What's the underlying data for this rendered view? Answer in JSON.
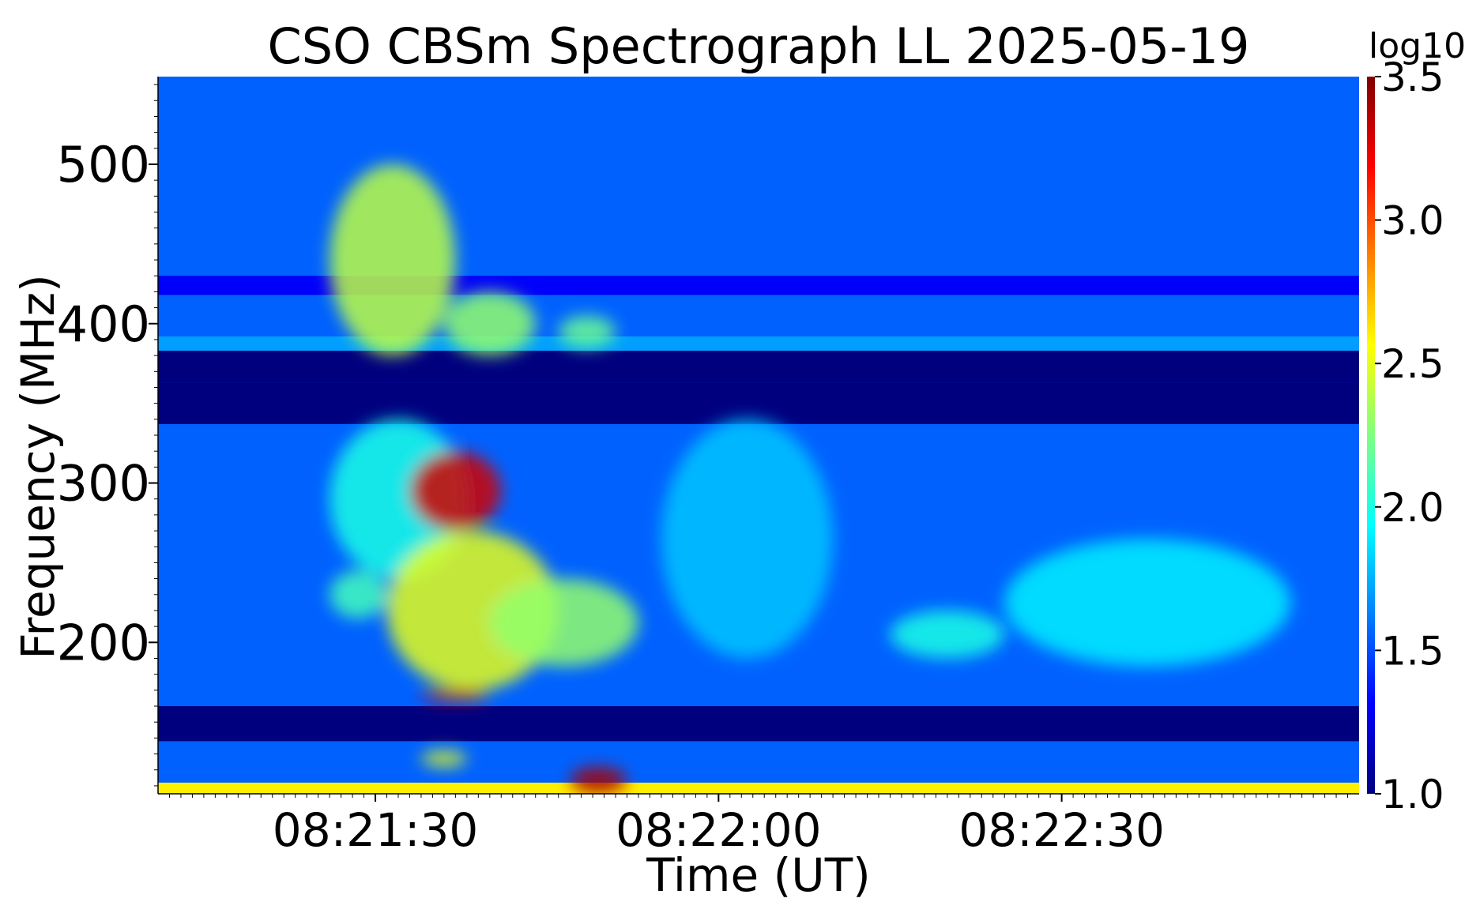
{
  "chart_data": {
    "type": "heatmap",
    "title": "CSO CBSm Spectrograph LL 2025-05-19",
    "xlabel": "Time (UT)",
    "ylabel": "Frequency (MHz)",
    "colorbar_label": "log10",
    "colormap": "jet",
    "colormap_colors": [
      "#00007f",
      "#0000ff",
      "#007fff",
      "#00ffff",
      "#7fff7f",
      "#ffff00",
      "#ff7f00",
      "#ff0000",
      "#7f0000"
    ],
    "xlim": [
      "08:21:11",
      "08:22:56"
    ],
    "ylim": [
      105,
      555
    ],
    "clim": [
      1.0,
      3.5
    ],
    "x_ticks": [
      {
        "value": "08:21:30",
        "label": "08:21:30"
      },
      {
        "value": "08:22:00",
        "label": "08:22:00"
      },
      {
        "value": "08:22:30",
        "label": "08:22:30"
      }
    ],
    "y_ticks": [
      {
        "value": 200,
        "label": "200"
      },
      {
        "value": 300,
        "label": "300"
      },
      {
        "value": 400,
        "label": "400"
      },
      {
        "value": 500,
        "label": "500"
      }
    ],
    "colorbar_ticks": [
      {
        "value": 1.0,
        "label": "1.0"
      },
      {
        "value": 1.5,
        "label": "1.5"
      },
      {
        "value": 2.0,
        "label": "2.0"
      },
      {
        "value": 2.5,
        "label": "2.5"
      },
      {
        "value": 3.0,
        "label": "3.0"
      },
      {
        "value": 3.5,
        "label": "3.5"
      }
    ],
    "background_level": 1.55,
    "bands": [
      {
        "f_low": 363,
        "f_high": 383,
        "level": 1.0
      },
      {
        "f_low": 337,
        "f_high": 363,
        "level": 1.0
      },
      {
        "f_low": 138,
        "f_high": 160,
        "level": 1.0
      },
      {
        "f_low": 383,
        "f_high": 392,
        "level": 1.7
      },
      {
        "f_low": 418,
        "f_high": 430,
        "level": 1.3
      },
      {
        "f_low": 105,
        "f_high": 112,
        "level": 2.6
      }
    ],
    "emission_regions": [
      {
        "t_start": "08:21:26",
        "t_end": "08:21:37",
        "f_low": 380,
        "f_high": 500,
        "level": 2.4
      },
      {
        "t_start": "08:21:36",
        "t_end": "08:21:44",
        "f_low": 380,
        "f_high": 420,
        "level": 2.3
      },
      {
        "t_start": "08:21:46",
        "t_end": "08:21:51",
        "f_low": 385,
        "f_high": 405,
        "level": 2.2
      },
      {
        "t_start": "08:21:26",
        "t_end": "08:21:38",
        "f_low": 240,
        "f_high": 340,
        "level": 2.0
      },
      {
        "t_start": "08:21:33",
        "t_end": "08:21:41",
        "f_low": 270,
        "f_high": 320,
        "level": 3.3
      },
      {
        "t_start": "08:21:31",
        "t_end": "08:21:46",
        "f_low": 170,
        "f_high": 270,
        "level": 2.5
      },
      {
        "t_start": "08:21:40",
        "t_end": "08:21:53",
        "f_low": 185,
        "f_high": 240,
        "level": 2.3
      },
      {
        "t_start": "08:21:26",
        "t_end": "08:21:31",
        "f_low": 215,
        "f_high": 245,
        "level": 2.1
      },
      {
        "t_start": "08:21:34",
        "t_end": "08:21:40",
        "f_low": 163,
        "f_high": 171,
        "level": 3.3
      },
      {
        "t_start": "08:21:34",
        "t_end": "08:21:38",
        "f_low": 122,
        "f_high": 132,
        "level": 2.5
      },
      {
        "t_start": "08:21:47",
        "t_end": "08:21:52",
        "f_low": 105,
        "f_high": 122,
        "level": 3.4
      },
      {
        "t_start": "08:21:55",
        "t_end": "08:22:10",
        "f_low": 190,
        "f_high": 340,
        "level": 1.8
      },
      {
        "t_start": "08:22:15",
        "t_end": "08:22:25",
        "f_low": 190,
        "f_high": 220,
        "level": 2.0
      },
      {
        "t_start": "08:22:25",
        "t_end": "08:22:50",
        "f_low": 185,
        "f_high": 265,
        "level": 1.9
      }
    ]
  }
}
